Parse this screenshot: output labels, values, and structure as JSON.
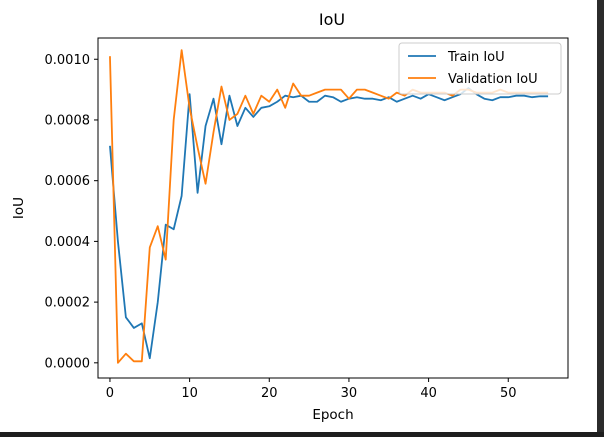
{
  "chart_data": {
    "type": "line",
    "title": "IoU",
    "xlabel": "Epoch",
    "ylabel": "IoU",
    "xlim": [
      -1.5,
      57.5
    ],
    "ylim": [
      -5e-05,
      0.00107
    ],
    "x_ticks": [
      0,
      10,
      20,
      30,
      40,
      50
    ],
    "x_tick_labels": [
      "0",
      "10",
      "20",
      "30",
      "40",
      "50"
    ],
    "y_ticks": [
      0.0,
      0.0002,
      0.0004,
      0.0006,
      0.0008,
      0.001
    ],
    "y_tick_labels": [
      "0.0000",
      "0.0002",
      "0.0004",
      "0.0006",
      "0.0008",
      "0.0010"
    ],
    "grid": false,
    "legend_position": "top-right",
    "x": [
      0,
      1,
      2,
      3,
      4,
      5,
      6,
      7,
      8,
      9,
      10,
      11,
      12,
      13,
      14,
      15,
      16,
      17,
      18,
      19,
      20,
      21,
      22,
      23,
      24,
      25,
      26,
      27,
      28,
      29,
      30,
      31,
      32,
      33,
      34,
      35,
      36,
      37,
      38,
      39,
      40,
      41,
      42,
      43,
      44,
      45,
      46,
      47,
      48,
      49,
      50,
      51,
      52,
      53,
      54,
      55
    ],
    "series": [
      {
        "name": "Train IoU",
        "color": "#1f77b4",
        "values": [
          0.000715,
          0.0004,
          0.00015,
          0.000115,
          0.00013,
          1.5e-05,
          0.0002,
          0.000455,
          0.00044,
          0.00055,
          0.000885,
          0.00056,
          0.00078,
          0.00087,
          0.00072,
          0.00088,
          0.00078,
          0.00084,
          0.00081,
          0.00084,
          0.000845,
          0.00086,
          0.00088,
          0.000875,
          0.00088,
          0.00086,
          0.00086,
          0.00088,
          0.000875,
          0.00086,
          0.00087,
          0.000875,
          0.00087,
          0.00087,
          0.000865,
          0.000875,
          0.00086,
          0.00087,
          0.00088,
          0.00087,
          0.000885,
          0.000875,
          0.000865,
          0.000875,
          0.000885,
          0.000905,
          0.000885,
          0.00087,
          0.000865,
          0.000875,
          0.000875,
          0.00088,
          0.00088,
          0.000875,
          0.000878,
          0.000878
        ]
      },
      {
        "name": "Validation IoU",
        "color": "#ff7f0e",
        "values": [
          0.00101,
          0.0,
          3e-05,
          5e-06,
          5e-06,
          0.00038,
          0.00045,
          0.00034,
          0.0008,
          0.00103,
          0.00084,
          0.00071,
          0.00059,
          0.00076,
          0.00091,
          0.0008,
          0.00082,
          0.00088,
          0.00082,
          0.00088,
          0.00086,
          0.0009,
          0.00084,
          0.00092,
          0.00088,
          0.00088,
          0.00089,
          0.0009,
          0.0009,
          0.0009,
          0.00087,
          0.0009,
          0.0009,
          0.00089,
          0.00088,
          0.00087,
          0.00089,
          0.00088,
          0.0009,
          0.00089,
          0.00089,
          0.00089,
          0.00089,
          0.00088,
          0.0009,
          0.0009,
          0.00089,
          0.00089,
          0.00089,
          0.0009,
          0.00089,
          0.00089,
          0.00089,
          0.00089,
          0.00089,
          0.00089
        ]
      }
    ]
  }
}
